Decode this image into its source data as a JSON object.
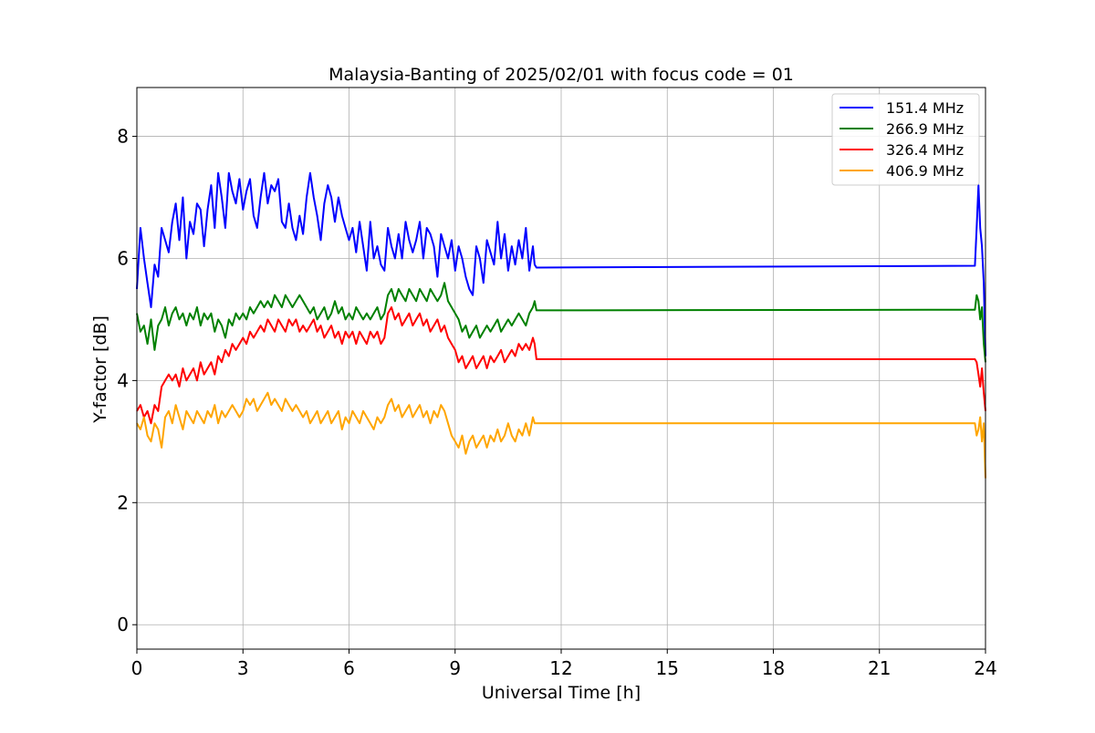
{
  "chart_data": {
    "type": "line",
    "title": "Malaysia-Banting of 2025/02/01 with focus code = 01",
    "xlabel": "Universal Time [h]",
    "ylabel": "Y-factor [dB]",
    "xlim": [
      0,
      24
    ],
    "ylim": [
      -0.4,
      8.8
    ],
    "xticks": [
      0,
      3,
      6,
      9,
      12,
      15,
      18,
      21,
      24
    ],
    "yticks": [
      0,
      2,
      4,
      6,
      8
    ],
    "grid": true,
    "legend_position": "top-right",
    "series": [
      {
        "name": "151.4 MHz",
        "color": "#0000ff",
        "x": [
          0.0,
          0.1,
          0.2,
          0.3,
          0.4,
          0.5,
          0.6,
          0.7,
          0.8,
          0.9,
          1.0,
          1.1,
          1.2,
          1.3,
          1.4,
          1.5,
          1.6,
          1.7,
          1.8,
          1.9,
          2.0,
          2.1,
          2.2,
          2.3,
          2.4,
          2.5,
          2.6,
          2.7,
          2.8,
          2.9,
          3.0,
          3.1,
          3.2,
          3.3,
          3.4,
          3.5,
          3.6,
          3.7,
          3.8,
          3.9,
          4.0,
          4.1,
          4.2,
          4.3,
          4.4,
          4.5,
          4.6,
          4.7,
          4.8,
          4.9,
          5.0,
          5.1,
          5.2,
          5.3,
          5.4,
          5.5,
          5.6,
          5.7,
          5.8,
          5.9,
          6.0,
          6.1,
          6.2,
          6.3,
          6.4,
          6.5,
          6.6,
          6.7,
          6.8,
          6.9,
          7.0,
          7.1,
          7.2,
          7.3,
          7.4,
          7.5,
          7.6,
          7.7,
          7.8,
          7.9,
          8.0,
          8.1,
          8.2,
          8.3,
          8.4,
          8.5,
          8.6,
          8.7,
          8.8,
          8.9,
          9.0,
          9.1,
          9.2,
          9.3,
          9.4,
          9.5,
          9.6,
          9.7,
          9.8,
          9.9,
          10.0,
          10.1,
          10.2,
          10.3,
          10.4,
          10.5,
          10.6,
          10.7,
          10.8,
          10.9,
          11.0,
          11.1,
          11.2,
          11.25,
          11.3,
          23.7,
          23.75,
          23.8,
          23.85,
          23.9,
          23.95,
          24.0
        ],
        "y": [
          5.5,
          6.5,
          6.0,
          5.6,
          5.2,
          5.9,
          5.7,
          6.5,
          6.3,
          6.1,
          6.6,
          6.9,
          6.3,
          7.0,
          6.0,
          6.6,
          6.4,
          6.9,
          6.8,
          6.2,
          6.8,
          7.2,
          6.5,
          7.4,
          7.0,
          6.5,
          7.4,
          7.1,
          6.9,
          7.3,
          6.8,
          7.1,
          7.3,
          6.7,
          6.5,
          7.0,
          7.4,
          6.9,
          7.2,
          7.1,
          7.3,
          6.6,
          6.5,
          6.9,
          6.5,
          6.3,
          6.7,
          6.4,
          7.0,
          7.4,
          7.0,
          6.7,
          6.3,
          6.9,
          7.2,
          7.0,
          6.6,
          7.0,
          6.7,
          6.5,
          6.3,
          6.5,
          6.1,
          6.6,
          6.2,
          5.8,
          6.6,
          6.0,
          6.2,
          5.9,
          5.8,
          6.5,
          6.2,
          6.0,
          6.4,
          6.0,
          6.6,
          6.3,
          6.1,
          6.3,
          6.6,
          6.0,
          6.5,
          6.4,
          6.2,
          5.7,
          6.4,
          6.2,
          6.0,
          6.3,
          5.8,
          6.2,
          6.0,
          5.7,
          5.5,
          5.4,
          6.2,
          6.0,
          5.6,
          6.3,
          6.1,
          5.9,
          6.6,
          6.0,
          6.4,
          5.8,
          6.2,
          5.9,
          6.3,
          6.0,
          6.5,
          5.8,
          6.2,
          5.9,
          5.85,
          5.88,
          6.5,
          7.2,
          6.5,
          6.2,
          5.6,
          4.4
        ]
      },
      {
        "name": "266.9 MHz",
        "color": "#008000",
        "x": [
          0.0,
          0.1,
          0.2,
          0.3,
          0.4,
          0.5,
          0.6,
          0.7,
          0.8,
          0.9,
          1.0,
          1.1,
          1.2,
          1.3,
          1.4,
          1.5,
          1.6,
          1.7,
          1.8,
          1.9,
          2.0,
          2.1,
          2.2,
          2.3,
          2.4,
          2.5,
          2.6,
          2.7,
          2.8,
          2.9,
          3.0,
          3.1,
          3.2,
          3.3,
          3.4,
          3.5,
          3.6,
          3.7,
          3.8,
          3.9,
          4.0,
          4.1,
          4.2,
          4.3,
          4.4,
          4.5,
          4.6,
          4.7,
          4.8,
          4.9,
          5.0,
          5.1,
          5.2,
          5.3,
          5.4,
          5.5,
          5.6,
          5.7,
          5.8,
          5.9,
          6.0,
          6.1,
          6.2,
          6.3,
          6.4,
          6.5,
          6.6,
          6.7,
          6.8,
          6.9,
          7.0,
          7.1,
          7.2,
          7.3,
          7.4,
          7.5,
          7.6,
          7.7,
          7.8,
          7.9,
          8.0,
          8.1,
          8.2,
          8.3,
          8.4,
          8.5,
          8.6,
          8.7,
          8.8,
          8.9,
          9.0,
          9.1,
          9.2,
          9.3,
          9.4,
          9.5,
          9.6,
          9.7,
          9.8,
          9.9,
          10.0,
          10.1,
          10.2,
          10.3,
          10.4,
          10.5,
          10.6,
          10.7,
          10.8,
          10.9,
          11.0,
          11.1,
          11.2,
          11.25,
          11.3,
          23.7,
          23.75,
          23.8,
          23.85,
          23.9,
          23.95,
          24.0
        ],
        "y": [
          5.1,
          4.8,
          4.9,
          4.6,
          5.0,
          4.5,
          4.9,
          5.0,
          5.2,
          4.9,
          5.1,
          5.2,
          5.0,
          5.1,
          4.9,
          5.1,
          5.0,
          5.2,
          4.9,
          5.1,
          5.0,
          5.1,
          4.8,
          5.0,
          4.9,
          4.7,
          5.0,
          4.9,
          5.1,
          5.0,
          5.1,
          5.0,
          5.2,
          5.1,
          5.2,
          5.3,
          5.2,
          5.3,
          5.2,
          5.4,
          5.3,
          5.2,
          5.4,
          5.3,
          5.2,
          5.3,
          5.4,
          5.3,
          5.2,
          5.1,
          5.2,
          5.0,
          5.1,
          5.2,
          5.0,
          5.1,
          5.3,
          5.1,
          5.2,
          5.0,
          5.1,
          5.0,
          5.2,
          5.1,
          5.0,
          5.1,
          5.0,
          5.1,
          5.2,
          5.0,
          5.1,
          5.4,
          5.5,
          5.3,
          5.5,
          5.4,
          5.3,
          5.5,
          5.4,
          5.3,
          5.5,
          5.4,
          5.3,
          5.5,
          5.4,
          5.3,
          5.4,
          5.6,
          5.3,
          5.2,
          5.1,
          5.0,
          4.8,
          4.9,
          4.7,
          4.8,
          4.9,
          4.7,
          4.8,
          4.9,
          4.8,
          4.9,
          5.0,
          4.8,
          4.9,
          5.0,
          4.9,
          5.0,
          5.1,
          5.0,
          4.9,
          5.1,
          5.2,
          5.3,
          5.15,
          5.16,
          5.4,
          5.3,
          5.0,
          5.2,
          4.6,
          4.3
        ]
      },
      {
        "name": "326.4 MHz",
        "color": "#ff0000",
        "x": [
          0.0,
          0.1,
          0.2,
          0.3,
          0.4,
          0.5,
          0.6,
          0.7,
          0.8,
          0.9,
          1.0,
          1.1,
          1.2,
          1.3,
          1.4,
          1.5,
          1.6,
          1.7,
          1.8,
          1.9,
          2.0,
          2.1,
          2.2,
          2.3,
          2.4,
          2.5,
          2.6,
          2.7,
          2.8,
          2.9,
          3.0,
          3.1,
          3.2,
          3.3,
          3.4,
          3.5,
          3.6,
          3.7,
          3.8,
          3.9,
          4.0,
          4.1,
          4.2,
          4.3,
          4.4,
          4.5,
          4.6,
          4.7,
          4.8,
          4.9,
          5.0,
          5.1,
          5.2,
          5.3,
          5.4,
          5.5,
          5.6,
          5.7,
          5.8,
          5.9,
          6.0,
          6.1,
          6.2,
          6.3,
          6.4,
          6.5,
          6.6,
          6.7,
          6.8,
          6.9,
          7.0,
          7.1,
          7.2,
          7.3,
          7.4,
          7.5,
          7.6,
          7.7,
          7.8,
          7.9,
          8.0,
          8.1,
          8.2,
          8.3,
          8.4,
          8.5,
          8.6,
          8.7,
          8.8,
          8.9,
          9.0,
          9.1,
          9.2,
          9.3,
          9.4,
          9.5,
          9.6,
          9.7,
          9.8,
          9.9,
          10.0,
          10.1,
          10.2,
          10.3,
          10.4,
          10.5,
          10.6,
          10.7,
          10.8,
          10.9,
          11.0,
          11.1,
          11.2,
          11.25,
          11.3,
          23.7,
          23.75,
          23.8,
          23.85,
          23.9,
          23.95,
          24.0
        ],
        "y": [
          3.5,
          3.6,
          3.4,
          3.5,
          3.3,
          3.6,
          3.5,
          3.9,
          4.0,
          4.1,
          4.0,
          4.1,
          3.9,
          4.2,
          4.0,
          4.1,
          4.2,
          4.0,
          4.3,
          4.1,
          4.2,
          4.3,
          4.1,
          4.4,
          4.3,
          4.5,
          4.4,
          4.6,
          4.5,
          4.6,
          4.7,
          4.6,
          4.8,
          4.7,
          4.8,
          4.9,
          4.8,
          5.0,
          4.9,
          4.8,
          5.0,
          4.9,
          4.8,
          5.0,
          4.9,
          5.0,
          4.8,
          4.9,
          4.8,
          4.9,
          5.0,
          4.8,
          4.9,
          4.7,
          4.8,
          4.9,
          4.7,
          4.8,
          4.6,
          4.8,
          4.7,
          4.8,
          4.6,
          4.8,
          4.7,
          4.6,
          4.8,
          4.7,
          4.8,
          4.6,
          4.7,
          5.1,
          5.2,
          5.0,
          5.1,
          4.9,
          5.0,
          5.1,
          4.9,
          5.0,
          5.1,
          4.9,
          5.0,
          4.8,
          4.9,
          5.0,
          4.8,
          4.9,
          4.7,
          4.6,
          4.5,
          4.3,
          4.4,
          4.2,
          4.3,
          4.4,
          4.2,
          4.3,
          4.4,
          4.2,
          4.4,
          4.3,
          4.4,
          4.5,
          4.3,
          4.4,
          4.5,
          4.4,
          4.6,
          4.5,
          4.6,
          4.5,
          4.7,
          4.6,
          4.35,
          4.35,
          4.3,
          4.1,
          3.9,
          4.2,
          3.8,
          3.5
        ]
      },
      {
        "name": "406.9 MHz",
        "color": "#ffa500",
        "x": [
          0.0,
          0.1,
          0.2,
          0.3,
          0.4,
          0.5,
          0.6,
          0.7,
          0.8,
          0.9,
          1.0,
          1.1,
          1.2,
          1.3,
          1.4,
          1.5,
          1.6,
          1.7,
          1.8,
          1.9,
          2.0,
          2.1,
          2.2,
          2.3,
          2.4,
          2.5,
          2.6,
          2.7,
          2.8,
          2.9,
          3.0,
          3.1,
          3.2,
          3.3,
          3.4,
          3.5,
          3.6,
          3.7,
          3.8,
          3.9,
          4.0,
          4.1,
          4.2,
          4.3,
          4.4,
          4.5,
          4.6,
          4.7,
          4.8,
          4.9,
          5.0,
          5.1,
          5.2,
          5.3,
          5.4,
          5.5,
          5.6,
          5.7,
          5.8,
          5.9,
          6.0,
          6.1,
          6.2,
          6.3,
          6.4,
          6.5,
          6.6,
          6.7,
          6.8,
          6.9,
          7.0,
          7.1,
          7.2,
          7.3,
          7.4,
          7.5,
          7.6,
          7.7,
          7.8,
          7.9,
          8.0,
          8.1,
          8.2,
          8.3,
          8.4,
          8.5,
          8.6,
          8.7,
          8.8,
          8.9,
          9.0,
          9.1,
          9.2,
          9.3,
          9.4,
          9.5,
          9.6,
          9.7,
          9.8,
          9.9,
          10.0,
          10.1,
          10.2,
          10.3,
          10.4,
          10.5,
          10.6,
          10.7,
          10.8,
          10.9,
          11.0,
          11.1,
          11.2,
          11.25,
          11.3,
          23.7,
          23.75,
          23.8,
          23.85,
          23.9,
          23.95,
          24.0
        ],
        "y": [
          3.3,
          3.2,
          3.4,
          3.1,
          3.0,
          3.3,
          3.2,
          2.9,
          3.4,
          3.5,
          3.3,
          3.6,
          3.4,
          3.2,
          3.5,
          3.4,
          3.3,
          3.5,
          3.4,
          3.3,
          3.5,
          3.4,
          3.6,
          3.3,
          3.5,
          3.4,
          3.5,
          3.6,
          3.5,
          3.4,
          3.5,
          3.7,
          3.6,
          3.7,
          3.5,
          3.6,
          3.7,
          3.8,
          3.6,
          3.7,
          3.6,
          3.5,
          3.7,
          3.6,
          3.5,
          3.6,
          3.5,
          3.4,
          3.5,
          3.3,
          3.4,
          3.5,
          3.3,
          3.4,
          3.5,
          3.3,
          3.4,
          3.5,
          3.2,
          3.4,
          3.3,
          3.5,
          3.4,
          3.3,
          3.5,
          3.4,
          3.3,
          3.2,
          3.4,
          3.3,
          3.4,
          3.6,
          3.7,
          3.5,
          3.6,
          3.4,
          3.5,
          3.6,
          3.4,
          3.5,
          3.6,
          3.4,
          3.5,
          3.3,
          3.5,
          3.4,
          3.6,
          3.5,
          3.3,
          3.1,
          3.0,
          2.9,
          3.1,
          2.8,
          3.0,
          3.1,
          2.9,
          3.0,
          3.1,
          2.9,
          3.1,
          3.0,
          3.2,
          3.0,
          3.1,
          3.3,
          3.1,
          3.0,
          3.2,
          3.1,
          3.3,
          3.1,
          3.4,
          3.3,
          3.3,
          3.3,
          3.1,
          3.2,
          3.4,
          3.0,
          3.3,
          2.4
        ]
      }
    ]
  }
}
